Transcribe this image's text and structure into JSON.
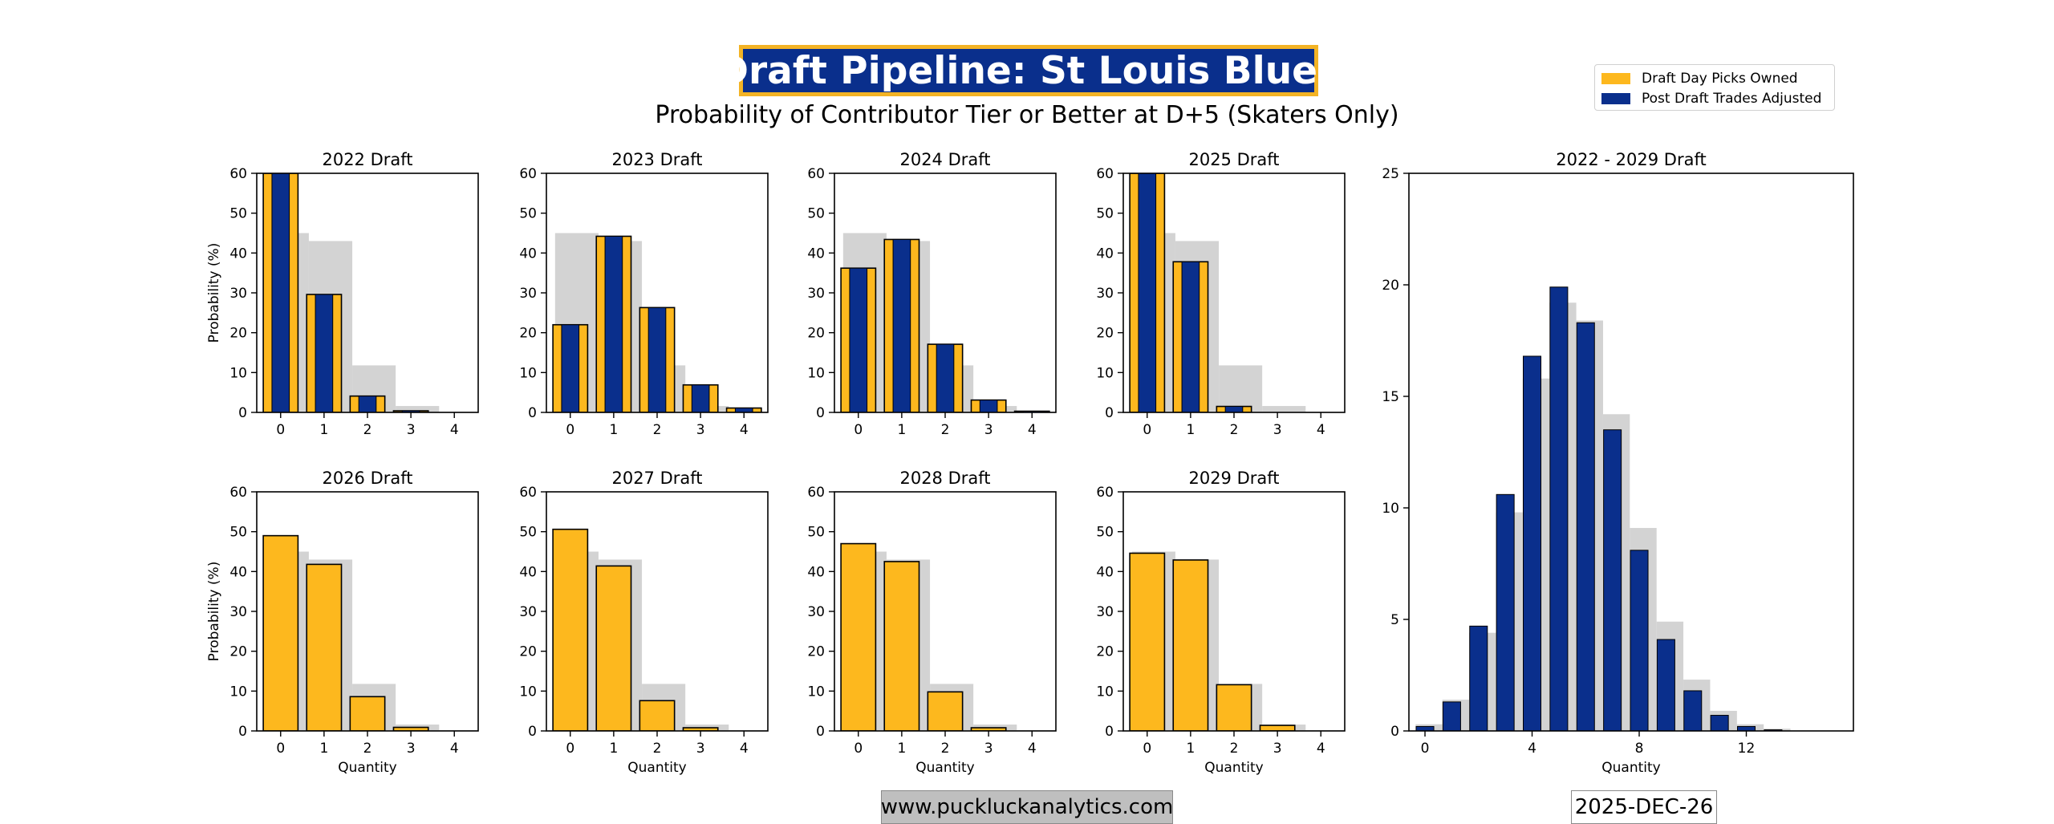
{
  "header": {
    "title": "Draft Pipeline: St Louis Blues",
    "subtitle": "Probability of Contributor Tier or Better at D+5 (Skaters Only)"
  },
  "legend": {
    "items": [
      {
        "label": "Draft Day Picks Owned",
        "color": "#FDB81E"
      },
      {
        "label": "Post Draft Trades Adjusted",
        "color": "#0A2F8C"
      }
    ]
  },
  "footer": {
    "url": "www.puckluckanalytics.com",
    "date": "2025-DEC-26"
  },
  "colors": {
    "gold": "#FDB81E",
    "navy": "#0A2F8C",
    "gray": "#D3D3D3"
  },
  "chart_data": [
    {
      "type": "bar",
      "title": "2022 Draft",
      "ylabel": "Probability (%)",
      "xlabel": "",
      "ylim": [
        0,
        60
      ],
      "x": [
        0,
        1,
        2,
        3,
        4
      ],
      "xticks": [
        0,
        1,
        2,
        3,
        4
      ],
      "yticks": [
        0,
        10,
        20,
        30,
        40,
        50,
        60
      ],
      "baseline": [
        45,
        43,
        11.8,
        1.6,
        0.2
      ],
      "series": [
        {
          "name": "Draft Day Picks Owned",
          "values": [
            62,
            29.6,
            4.1,
            0.4,
            0
          ]
        },
        {
          "name": "Post Draft Trades Adjusted",
          "values": [
            62,
            29.6,
            4.1,
            0.4,
            0
          ]
        }
      ]
    },
    {
      "type": "bar",
      "title": "2023 Draft",
      "ylabel": "",
      "xlabel": "",
      "ylim": [
        0,
        60
      ],
      "x": [
        0,
        1,
        2,
        3,
        4
      ],
      "xticks": [
        0,
        1,
        2,
        3,
        4
      ],
      "yticks": [
        0,
        10,
        20,
        30,
        40,
        50,
        60
      ],
      "baseline": [
        45,
        43,
        11.8,
        1.6,
        0.2
      ],
      "series": [
        {
          "name": "Draft Day Picks Owned",
          "values": [
            22,
            44.2,
            26.3,
            6.9,
            1.1
          ]
        },
        {
          "name": "Post Draft Trades Adjusted",
          "values": [
            22,
            44.2,
            26.3,
            6.9,
            1.1
          ]
        }
      ]
    },
    {
      "type": "bar",
      "title": "2024 Draft",
      "ylabel": "",
      "xlabel": "",
      "ylim": [
        0,
        60
      ],
      "x": [
        0,
        1,
        2,
        3,
        4
      ],
      "xticks": [
        0,
        1,
        2,
        3,
        4
      ],
      "yticks": [
        0,
        10,
        20,
        30,
        40,
        50,
        60
      ],
      "baseline": [
        45,
        43,
        11.8,
        1.6,
        0.2
      ],
      "series": [
        {
          "name": "Draft Day Picks Owned",
          "values": [
            36.2,
            43.4,
            17.1,
            3.1,
            0.3
          ]
        },
        {
          "name": "Post Draft Trades Adjusted",
          "values": [
            36.2,
            43.4,
            17.1,
            3.1,
            0.3
          ]
        }
      ]
    },
    {
      "type": "bar",
      "title": "2025 Draft",
      "ylabel": "",
      "xlabel": "",
      "ylim": [
        0,
        60
      ],
      "x": [
        0,
        1,
        2,
        3,
        4
      ],
      "xticks": [
        0,
        1,
        2,
        3,
        4
      ],
      "yticks": [
        0,
        10,
        20,
        30,
        40,
        50,
        60
      ],
      "baseline": [
        45,
        43,
        11.8,
        1.6,
        0.2
      ],
      "series": [
        {
          "name": "Draft Day Picks Owned",
          "values": [
            61,
            37.8,
            1.5,
            0,
            0
          ]
        },
        {
          "name": "Post Draft Trades Adjusted",
          "values": [
            61,
            37.8,
            1.5,
            0,
            0
          ]
        }
      ]
    },
    {
      "type": "bar",
      "title": "2026 Draft",
      "ylabel": "Probability (%)",
      "xlabel": "Quantity",
      "ylim": [
        0,
        60
      ],
      "x": [
        0,
        1,
        2,
        3,
        4
      ],
      "xticks": [
        0,
        1,
        2,
        3,
        4
      ],
      "yticks": [
        0,
        10,
        20,
        30,
        40,
        50,
        60
      ],
      "baseline": [
        45,
        43,
        11.8,
        1.6,
        0.2
      ],
      "series": [
        {
          "name": "Draft Day Picks Owned",
          "values": [
            49,
            41.8,
            8.6,
            0.9,
            0
          ]
        }
      ]
    },
    {
      "type": "bar",
      "title": "2027 Draft",
      "ylabel": "",
      "xlabel": "Quantity",
      "ylim": [
        0,
        60
      ],
      "x": [
        0,
        1,
        2,
        3,
        4
      ],
      "xticks": [
        0,
        1,
        2,
        3,
        4
      ],
      "yticks": [
        0,
        10,
        20,
        30,
        40,
        50,
        60
      ],
      "baseline": [
        45,
        43,
        11.8,
        1.6,
        0.2
      ],
      "series": [
        {
          "name": "Draft Day Picks Owned",
          "values": [
            50.6,
            41.4,
            7.6,
            0.8,
            0
          ]
        }
      ]
    },
    {
      "type": "bar",
      "title": "2028 Draft",
      "ylabel": "",
      "xlabel": "Quantity",
      "ylim": [
        0,
        60
      ],
      "x": [
        0,
        1,
        2,
        3,
        4
      ],
      "xticks": [
        0,
        1,
        2,
        3,
        4
      ],
      "yticks": [
        0,
        10,
        20,
        30,
        40,
        50,
        60
      ],
      "baseline": [
        45,
        43,
        11.8,
        1.6,
        0.2
      ],
      "series": [
        {
          "name": "Draft Day Picks Owned",
          "values": [
            47,
            42.5,
            9.8,
            0.8,
            0
          ]
        }
      ]
    },
    {
      "type": "bar",
      "title": "2029 Draft",
      "ylabel": "",
      "xlabel": "Quantity",
      "ylim": [
        0,
        60
      ],
      "x": [
        0,
        1,
        2,
        3,
        4
      ],
      "xticks": [
        0,
        1,
        2,
        3,
        4
      ],
      "yticks": [
        0,
        10,
        20,
        30,
        40,
        50,
        60
      ],
      "baseline": [
        45,
        43,
        11.8,
        1.6,
        0.2
      ],
      "series": [
        {
          "name": "Draft Day Picks Owned",
          "values": [
            44.6,
            42.9,
            11.6,
            1.4,
            0
          ]
        }
      ]
    },
    {
      "type": "bar",
      "title": "2022 - 2029 Draft",
      "ylabel": "",
      "xlabel": "Quantity",
      "ylim": [
        0,
        25
      ],
      "xlim": [
        -0.6,
        16
      ],
      "x": [
        0,
        1,
        2,
        3,
        4,
        5,
        6,
        7,
        8,
        9,
        10,
        11,
        12,
        13,
        14,
        15
      ],
      "xticks": [
        0,
        4,
        8,
        12
      ],
      "yticks": [
        0,
        5,
        10,
        15,
        20,
        25
      ],
      "baseline": [
        0.3,
        1.4,
        4.4,
        9.8,
        15.8,
        19.2,
        18.4,
        14.2,
        9.1,
        4.9,
        2.3,
        0.9,
        0.3,
        0.1,
        0,
        0
      ],
      "series": [
        {
          "name": "Post Draft Trades Adjusted",
          "values": [
            0.2,
            1.3,
            4.7,
            10.6,
            16.8,
            19.9,
            18.3,
            13.5,
            8.1,
            4.1,
            1.8,
            0.7,
            0.2,
            0.05,
            0,
            0
          ]
        }
      ]
    }
  ]
}
